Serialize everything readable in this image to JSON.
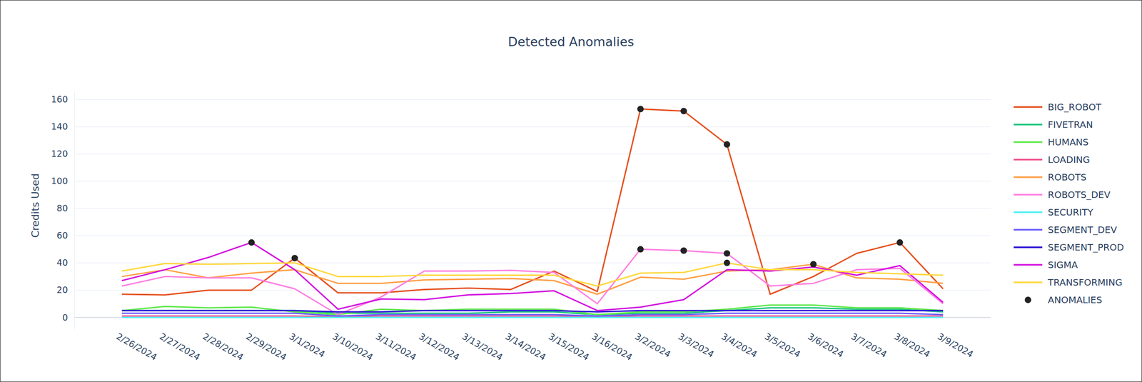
{
  "chart_data": {
    "type": "line",
    "title": "Detected Anomalies",
    "y_label": "Credits Used",
    "categories": [
      "2/26/2024",
      "2/27/2024",
      "2/28/2024",
      "2/29/2024",
      "3/1/2024",
      "3/10/2024",
      "3/11/2024",
      "3/12/2024",
      "3/13/2024",
      "3/14/2024",
      "3/15/2024",
      "3/16/2024",
      "3/2/2024",
      "3/3/2024",
      "3/4/2024",
      "3/5/2024",
      "3/6/2024",
      "3/7/2024",
      "3/8/2024",
      "3/9/2024"
    ],
    "series": [
      {
        "name": "BIG_ROBOT",
        "color": "#e6501e",
        "values": [
          17,
          16.5,
          20,
          20,
          43.5,
          18,
          18,
          20.5,
          21.5,
          20.5,
          34,
          19,
          153,
          151.5,
          127,
          17,
          30,
          47,
          55,
          21
        ]
      },
      {
        "name": "FIVETRAN",
        "color": "#1bc47d",
        "values": [
          5,
          5,
          5,
          5,
          5,
          3,
          3,
          3,
          3,
          4,
          4,
          2,
          3,
          3,
          5,
          7,
          7,
          6,
          6,
          4
        ]
      },
      {
        "name": "HUMANS",
        "color": "#5ee84a",
        "values": [
          5,
          8,
          7,
          7.5,
          4,
          2,
          6,
          5,
          6,
          6,
          6,
          2,
          4,
          4,
          6,
          9,
          9,
          7,
          7,
          5
        ]
      },
      {
        "name": "LOADING",
        "color": "#f0508c",
        "values": [
          1,
          1,
          1,
          1,
          1,
          0.5,
          1,
          1,
          1,
          1,
          1,
          0.5,
          1,
          1,
          1,
          1,
          1,
          1,
          1,
          1
        ]
      },
      {
        "name": "ROBOTS",
        "color": "#ff9f45",
        "values": [
          30,
          35,
          29,
          32.5,
          35,
          25,
          25,
          27.5,
          28,
          28.5,
          27,
          17,
          29.5,
          28,
          34,
          35,
          39,
          29,
          28,
          25
        ]
      },
      {
        "name": "ROBOTS_DEV",
        "color": "#ff7fe0",
        "values": [
          23,
          30,
          29,
          29,
          21,
          2,
          15,
          34,
          34,
          34.5,
          33,
          10,
          50,
          49,
          47,
          23,
          25,
          35,
          36,
          10
        ]
      },
      {
        "name": "SECURITY",
        "color": "#4ff0f5",
        "values": [
          0,
          0,
          0,
          0,
          0,
          0,
          0,
          0,
          0,
          0,
          0,
          0,
          0,
          0,
          0,
          0,
          0,
          0,
          0,
          0
        ]
      },
      {
        "name": "SEGMENT_DEV",
        "color": "#6a5cff",
        "values": [
          3,
          3,
          3,
          3,
          3,
          1,
          2,
          2,
          2,
          2,
          2,
          1,
          2,
          2,
          3,
          3,
          3,
          3,
          3,
          2
        ]
      },
      {
        "name": "SEGMENT_PROD",
        "color": "#2b12d6",
        "values": [
          5,
          5,
          5,
          5,
          5,
          4,
          4,
          5,
          5,
          5,
          5,
          4,
          5,
          5,
          5,
          5,
          5,
          5,
          5,
          5
        ]
      },
      {
        "name": "SIGMA",
        "color": "#d313e0",
        "values": [
          27,
          35,
          44,
          55,
          35,
          6,
          13.5,
          13,
          16.5,
          17.5,
          19.5,
          5,
          7.5,
          13,
          35,
          34,
          37,
          31,
          38,
          11
        ]
      },
      {
        "name": "TRANSFORMING",
        "color": "#ffd83d",
        "values": [
          34,
          39.5,
          39,
          39.5,
          40,
          30,
          30,
          31,
          31,
          31,
          31,
          23,
          32.5,
          33,
          40,
          35,
          35,
          33,
          32,
          31
        ]
      },
      {
        "name": "ANOMALIES",
        "color": "#222222",
        "type": "scatter",
        "marker": "circle",
        "x": [
          "2/29/2024",
          "3/1/2024",
          "3/2/2024",
          "3/2/2024",
          "3/3/2024",
          "3/3/2024",
          "3/4/2024",
          "3/4/2024",
          "3/4/2024",
          "3/6/2024",
          "3/8/2024"
        ],
        "values": [
          55,
          43.5,
          153,
          50,
          151.5,
          49,
          127,
          47,
          40,
          39,
          55
        ]
      }
    ],
    "ylim": [
      -8.5,
      166
    ],
    "yticks": [
      0,
      20,
      40,
      60,
      80,
      100,
      120,
      140,
      160
    ],
    "grid": true,
    "legend": "right"
  }
}
